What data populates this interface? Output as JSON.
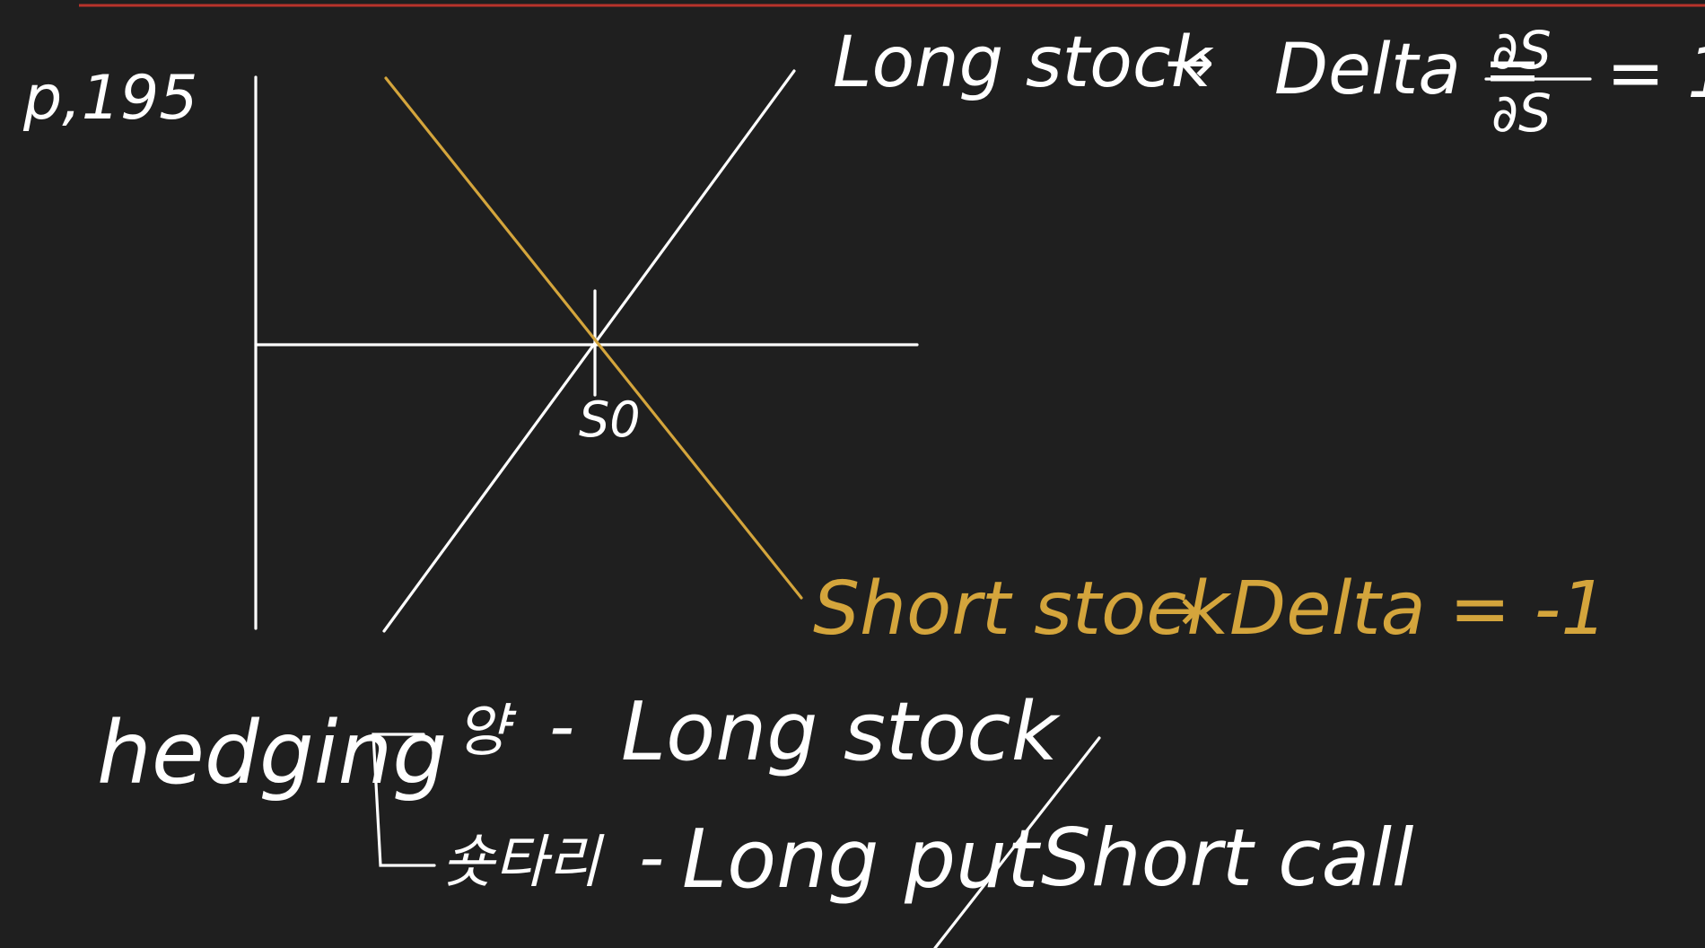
{
  "page_ref": "p,195",
  "axis_label": "S0",
  "long_stock_label": "Long stock",
  "long_stock_arrow": "→",
  "long_delta_prefix": "Delta =",
  "long_delta_numerator": "∂S",
  "long_delta_denominator": "∂S",
  "long_delta_result": "= 1",
  "short_stock_label": "Short stock",
  "short_stock_arrow": "→",
  "short_delta": "Delta = -1",
  "hedging_label": "hedging",
  "hedge_line_1_korean": "양",
  "hedge_line_1_dash": "-",
  "hedge_line_1_text": "Long stock",
  "hedge_line_2_korean": "숏타리",
  "hedge_line_2_dash": "-",
  "hedge_line_2_text": "Long put",
  "hedge_line_2_alt": "Short call",
  "colors": {
    "background": "#1f1f1f",
    "ink": "#ffffff",
    "short_ink": "#d4a53c",
    "top_rule": "#b8332b"
  }
}
